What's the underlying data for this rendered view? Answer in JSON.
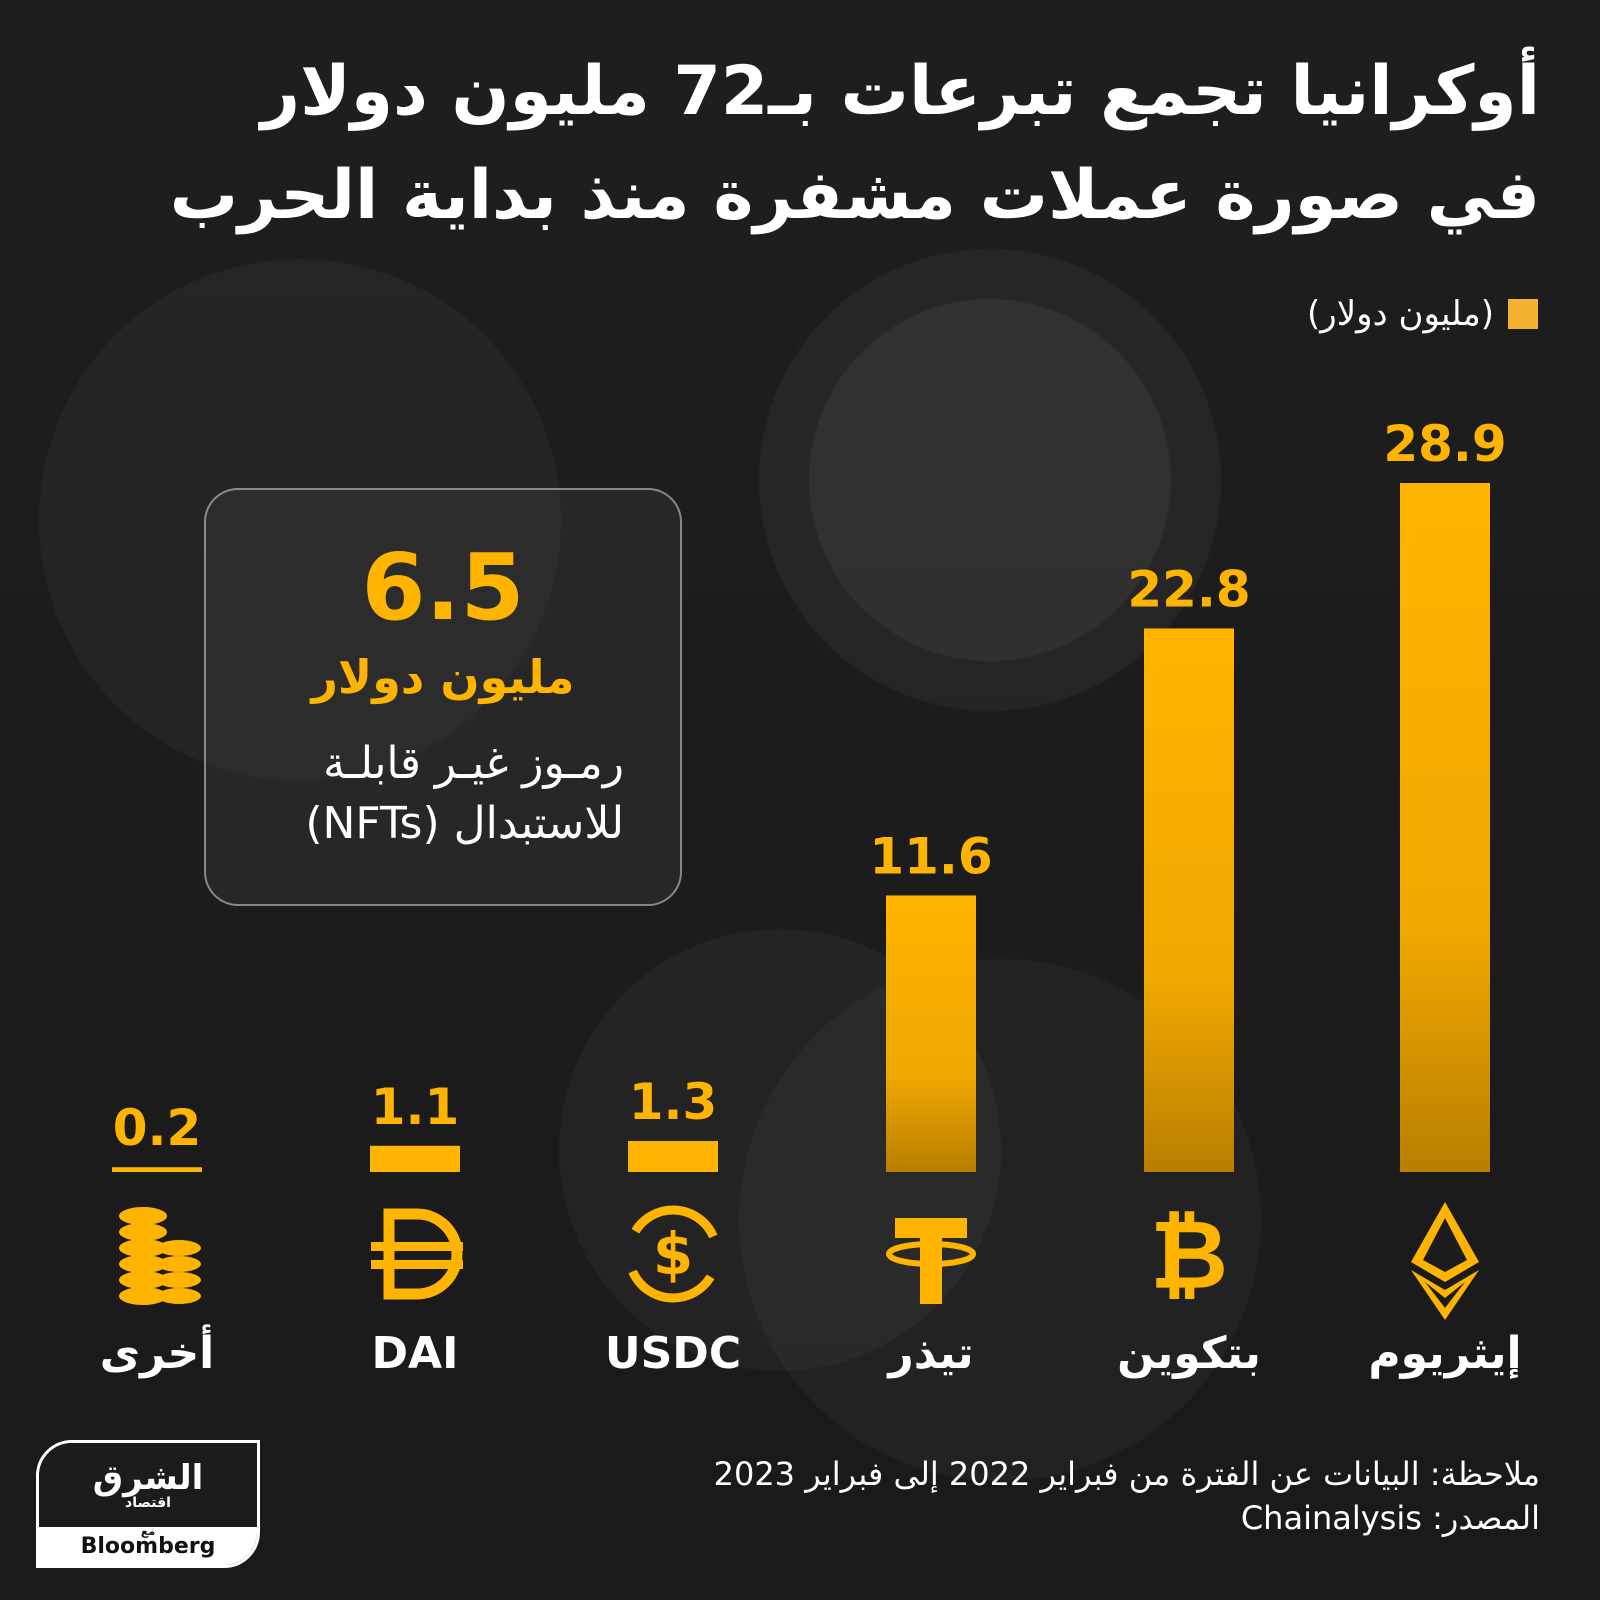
{
  "title": {
    "line1": "أوكرانيا تجمع تبرعات بـ72 مليون دولار",
    "line2": "في صورة عملات مشفرة منذ بداية الحرب"
  },
  "legend": {
    "label": "(مليون دولار)",
    "color": "#f3b230"
  },
  "chart_data": {
    "type": "bar",
    "categories": [
      "إيثريوم",
      "بتكوين",
      "تيذر",
      "USDC",
      "DAI",
      "أخرى"
    ],
    "values": [
      28.9,
      22.8,
      11.6,
      1.3,
      1.1,
      0.2
    ],
    "value_labels": [
      "28.9",
      "22.8",
      "11.6",
      "1.3",
      "1.1",
      "0.2"
    ],
    "icons": [
      "ethereum-icon",
      "bitcoin-icon",
      "tether-icon",
      "usdc-icon",
      "dai-icon",
      "coins-stack-icon"
    ],
    "ylim": [
      0,
      28.9
    ],
    "bar_color": "#ffb400",
    "grid": false,
    "legend_position": "top-right"
  },
  "callout": {
    "value": "6.5",
    "unit": "مليون دولار",
    "description_line1": "رمـوز غيـر قابلـة",
    "description_line2": "للاستبدال (NFTs)"
  },
  "notes": {
    "note": "ملاحظة: البيانات عن الفترة من فبراير 2022 إلى فبراير 2023",
    "source": "المصدر: Chainalysis"
  },
  "logo": {
    "arabic_main": "الشرق",
    "arabic_sub": "اقتصاد",
    "with": "مع",
    "brand": "Bloomberg"
  }
}
